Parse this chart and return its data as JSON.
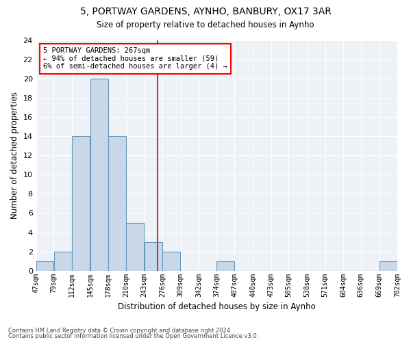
{
  "title_line1": "5, PORTWAY GARDENS, AYNHO, BANBURY, OX17 3AR",
  "title_line2": "Size of property relative to detached houses in Aynho",
  "xlabel": "Distribution of detached houses by size in Aynho",
  "ylabel": "Number of detached properties",
  "bin_edges": [
    47,
    79,
    112,
    145,
    178,
    210,
    243,
    276,
    309,
    342,
    374,
    407,
    440,
    473,
    505,
    538,
    571,
    604,
    636,
    669,
    702
  ],
  "bar_heights": [
    1,
    2,
    14,
    20,
    14,
    5,
    3,
    2,
    0,
    0,
    1,
    0,
    0,
    0,
    0,
    0,
    0,
    0,
    0,
    1
  ],
  "bar_color": "#c8d8e8",
  "bar_edge_color": "#6699bb",
  "subject_size": 267,
  "annotation_text": "5 PORTWAY GARDENS: 267sqm\n← 94% of detached houses are smaller (59)\n6% of semi-detached houses are larger (4) →",
  "annotation_box_color": "white",
  "annotation_box_edge_color": "red",
  "vline_color": "#c0392b",
  "ylim": [
    0,
    24
  ],
  "yticks": [
    0,
    2,
    4,
    6,
    8,
    10,
    12,
    14,
    16,
    18,
    20,
    22,
    24
  ],
  "background_color": "#eef2f7",
  "grid_color": "white",
  "footer_line1": "Contains HM Land Registry data © Crown copyright and database right 2024.",
  "footer_line2": "Contains public sector information licensed under the Open Government Licence v3.0."
}
